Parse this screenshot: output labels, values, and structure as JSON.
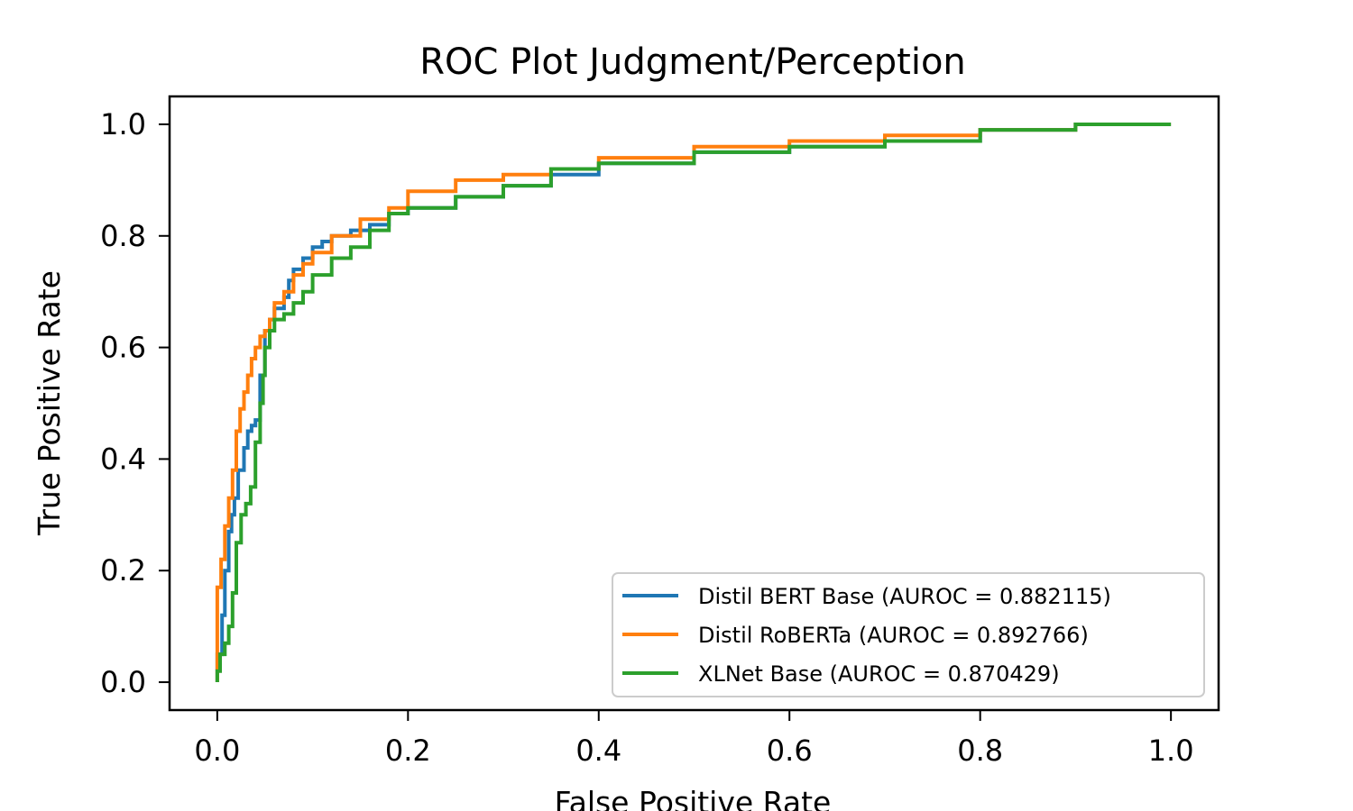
{
  "chart_data": {
    "type": "line",
    "title": "ROC Plot Judgment/Perception",
    "xlabel": "False Positive Rate",
    "ylabel": "True Positive Rate",
    "xlim": [
      -0.05,
      1.05
    ],
    "ylim": [
      -0.05,
      1.05
    ],
    "xticks": [
      "0.0",
      "0.2",
      "0.4",
      "0.6",
      "0.8",
      "1.0"
    ],
    "yticks": [
      "0.0",
      "0.2",
      "0.4",
      "0.6",
      "0.8",
      "1.0"
    ],
    "grid": false,
    "legend_position": "lower-right",
    "series": [
      {
        "name": "Distil BERT Base (AUROC = 0.882115)",
        "color": "#1f77b4",
        "x": [
          0.0,
          0.0,
          0.005,
          0.008,
          0.012,
          0.015,
          0.018,
          0.022,
          0.028,
          0.032,
          0.036,
          0.04,
          0.045,
          0.05,
          0.055,
          0.06,
          0.07,
          0.075,
          0.08,
          0.09,
          0.1,
          0.11,
          0.12,
          0.14,
          0.16,
          0.18,
          0.2,
          0.25,
          0.3,
          0.35,
          0.4,
          0.5,
          0.6,
          0.7,
          0.8,
          0.85,
          0.9,
          1.0
        ],
        "y": [
          0.0,
          0.02,
          0.05,
          0.12,
          0.2,
          0.27,
          0.3,
          0.33,
          0.38,
          0.42,
          0.45,
          0.46,
          0.47,
          0.55,
          0.63,
          0.65,
          0.67,
          0.69,
          0.72,
          0.74,
          0.76,
          0.78,
          0.79,
          0.8,
          0.81,
          0.82,
          0.84,
          0.85,
          0.87,
          0.89,
          0.91,
          0.93,
          0.95,
          0.96,
          0.97,
          0.99,
          0.99,
          1.0
        ]
      },
      {
        "name": "Distil RoBERTa (AUROC = 0.892766)",
        "color": "#ff7f0e",
        "x": [
          0.0,
          0.0,
          0.004,
          0.008,
          0.012,
          0.016,
          0.02,
          0.024,
          0.028,
          0.032,
          0.036,
          0.04,
          0.045,
          0.05,
          0.055,
          0.06,
          0.07,
          0.08,
          0.09,
          0.1,
          0.12,
          0.15,
          0.18,
          0.2,
          0.25,
          0.3,
          0.35,
          0.4,
          0.5,
          0.6,
          0.7,
          0.8,
          0.9,
          1.0
        ],
        "y": [
          0.0,
          0.13,
          0.17,
          0.22,
          0.28,
          0.33,
          0.38,
          0.45,
          0.49,
          0.52,
          0.55,
          0.58,
          0.6,
          0.62,
          0.63,
          0.65,
          0.68,
          0.7,
          0.73,
          0.75,
          0.77,
          0.8,
          0.83,
          0.85,
          0.88,
          0.9,
          0.91,
          0.92,
          0.94,
          0.96,
          0.97,
          0.98,
          0.99,
          1.0
        ]
      },
      {
        "name": "XLNet Base (AUROC = 0.870429)",
        "color": "#2ca02c",
        "x": [
          0.0,
          0.003,
          0.008,
          0.012,
          0.016,
          0.02,
          0.025,
          0.03,
          0.035,
          0.04,
          0.045,
          0.048,
          0.05,
          0.055,
          0.06,
          0.07,
          0.08,
          0.09,
          0.1,
          0.12,
          0.14,
          0.16,
          0.18,
          0.2,
          0.25,
          0.3,
          0.35,
          0.4,
          0.5,
          0.6,
          0.7,
          0.8,
          0.9,
          1.0
        ],
        "y": [
          0.0,
          0.02,
          0.05,
          0.07,
          0.1,
          0.16,
          0.25,
          0.3,
          0.32,
          0.35,
          0.43,
          0.5,
          0.55,
          0.6,
          0.63,
          0.65,
          0.66,
          0.68,
          0.7,
          0.73,
          0.76,
          0.78,
          0.81,
          0.84,
          0.85,
          0.87,
          0.89,
          0.92,
          0.93,
          0.95,
          0.96,
          0.97,
          0.99,
          1.0
        ]
      }
    ]
  }
}
